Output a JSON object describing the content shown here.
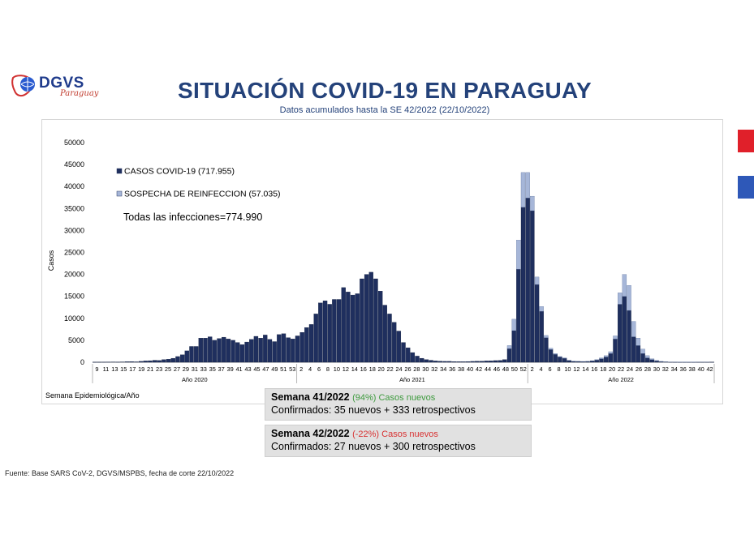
{
  "header": {
    "logo_text": "DGVS",
    "logo_sub": "Paraguay",
    "title": "SITUACIÓN COVID-19 EN PARAGUAY",
    "subtitle": "Datos acumulados hasta la SE 42/2022 (22/10/2022)"
  },
  "colors": {
    "confirmed": "#1f2f5e",
    "reinfection": "#a6b6d8",
    "title": "#24427a",
    "flag_red": "#e0202a",
    "flag_blue": "#2e58b8"
  },
  "annotation": "Todas las infecciones=774.990",
  "x_axis_title": "Semana Epidemiológica/Año",
  "weeks": [
    {
      "head": "Semana 41/2022",
      "pct": "(94%) Casos nuevos",
      "pct_type": "up",
      "line": "Confirmados: 35 nuevos + 333 retrospectivos"
    },
    {
      "head": "Semana 42/2022",
      "pct": "(-22%) Casos nuevos",
      "pct_type": "down",
      "line": "Confirmados: 27 nuevos + 300 retrospectivos"
    }
  ],
  "source": "Fuente: Base SARS CoV-2, DGVS/MSPBS, fecha de corte 22/10/2022",
  "chart_data": {
    "type": "bar",
    "stacked": true,
    "ylabel": "Casos",
    "ylim": [
      0,
      50000
    ],
    "yticks": [
      0,
      5000,
      10000,
      15000,
      20000,
      25000,
      30000,
      35000,
      40000,
      45000,
      50000
    ],
    "xticks": [
      "9",
      "11",
      "13",
      "15",
      "17",
      "19",
      "21",
      "23",
      "25",
      "27",
      "29",
      "31",
      "33",
      "35",
      "37",
      "39",
      "41",
      "43",
      "45",
      "47",
      "49",
      "51",
      "53",
      "2",
      "4",
      "6",
      "8",
      "10",
      "12",
      "14",
      "16",
      "18",
      "20",
      "22",
      "24",
      "26",
      "28",
      "30",
      "32",
      "34",
      "36",
      "38",
      "40",
      "42",
      "44",
      "46",
      "48",
      "50",
      "52",
      "2",
      "4",
      "6",
      "8",
      "10",
      "12",
      "14",
      "16",
      "18",
      "20",
      "22",
      "24",
      "26",
      "28",
      "30",
      "32",
      "34",
      "36",
      "38",
      "40",
      "42"
    ],
    "year_labels": [
      "Año 2020",
      "Año 2021",
      "Año 2022"
    ],
    "legend": [
      "CASOS COVID-19 (717.955)",
      "SOSPECHA DE REINFECCION (57.035)"
    ],
    "legend_position": "top-left",
    "series": [
      {
        "name": "CASOS COVID-19 (717.955)",
        "values": [
          30,
          40,
          50,
          60,
          70,
          60,
          80,
          120,
          150,
          100,
          200,
          300,
          350,
          450,
          400,
          600,
          700,
          900,
          1300,
          1700,
          2600,
          3600,
          3600,
          5500,
          5500,
          5800,
          5000,
          5400,
          5700,
          5300,
          5000,
          4500,
          4000,
          4600,
          5200,
          5900,
          5500,
          6200,
          5200,
          4700,
          6300,
          6500,
          5600,
          5300,
          6000,
          6800,
          7900,
          8600,
          11000,
          13500,
          14000,
          13200,
          14300,
          14300,
          17000,
          16000,
          15300,
          15600,
          19000,
          20000,
          20500,
          19000,
          16200,
          13000,
          11000,
          9100,
          7100,
          4500,
          3300,
          2200,
          1400,
          900,
          600,
          450,
          300,
          250,
          200,
          200,
          150,
          130,
          120,
          160,
          200,
          250,
          250,
          300,
          320,
          380,
          420,
          600,
          3100,
          7200,
          21200,
          35300,
          37400,
          34500,
          17700,
          11600,
          5600,
          2900,
          1800,
          1200,
          900,
          400,
          200,
          180,
          160,
          180,
          300,
          500,
          800,
          1200,
          2000,
          5300,
          13200,
          15000,
          11800,
          5800,
          3800,
          2000,
          1000,
          600,
          300,
          150,
          80,
          50,
          30,
          20,
          20,
          20,
          20,
          30,
          40,
          40,
          30
        ]
      },
      {
        "name": "SOSPECHA DE REINFECCION (57.035)",
        "values": [
          0,
          0,
          0,
          0,
          0,
          0,
          0,
          0,
          0,
          0,
          0,
          0,
          0,
          0,
          0,
          0,
          0,
          0,
          0,
          0,
          0,
          0,
          0,
          0,
          0,
          0,
          0,
          0,
          0,
          0,
          0,
          0,
          0,
          0,
          0,
          0,
          0,
          0,
          0,
          0,
          0,
          0,
          0,
          0,
          0,
          0,
          0,
          0,
          0,
          0,
          0,
          0,
          0,
          0,
          0,
          0,
          0,
          0,
          0,
          0,
          0,
          0,
          0,
          0,
          0,
          0,
          0,
          0,
          0,
          0,
          0,
          0,
          0,
          0,
          0,
          0,
          0,
          0,
          0,
          0,
          0,
          0,
          0,
          0,
          0,
          0,
          0,
          0,
          0,
          0,
          700,
          2600,
          6600,
          7900,
          5800,
          3300,
          1700,
          1100,
          500,
          300,
          200,
          100,
          100,
          50,
          20,
          20,
          20,
          20,
          50,
          100,
          200,
          300,
          400,
          700,
          2600,
          5000,
          5700,
          3500,
          1700,
          1000,
          500,
          200,
          100,
          50,
          30,
          20,
          10,
          10,
          10,
          10,
          10,
          10,
          10,
          10
        ]
      }
    ]
  }
}
